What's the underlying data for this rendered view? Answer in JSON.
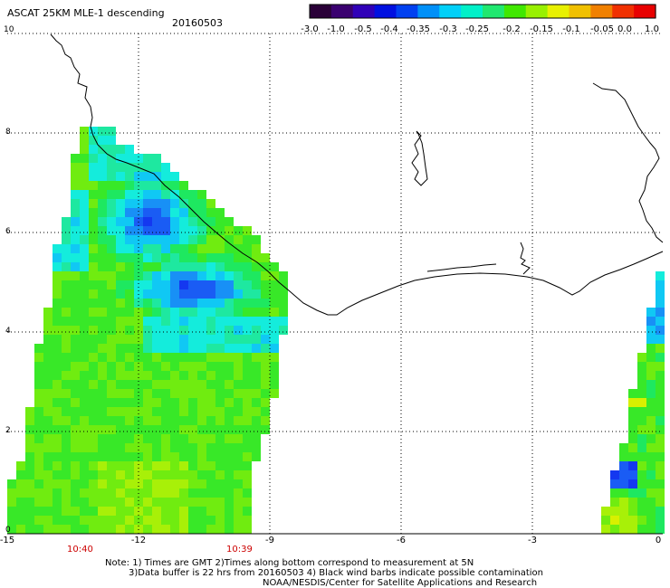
{
  "header": {
    "title": "ASCAT 25KM MLE-1 descending",
    "date": "20160503"
  },
  "colorbar": {
    "labels": [
      "-3.0",
      "-1.0",
      "-0.5",
      "-0.4",
      "-0.35",
      "-0.3",
      "-0.25",
      "-0.2",
      "-0.15",
      "-0.1",
      "-0.05",
      "0.0",
      "1.0"
    ],
    "colors": [
      "#2a0038",
      "#3a0070",
      "#3000b8",
      "#0010e0",
      "#0040f0",
      "#0090f8",
      "#00d0f8",
      "#00f0c8",
      "#20e870",
      "#40e800",
      "#98f000",
      "#e8f000",
      "#f0c000",
      "#f08000",
      "#f03000",
      "#e80000"
    ]
  },
  "axes": {
    "x_ticks": [
      "-15",
      "-12",
      "-9",
      "-6",
      "-3",
      "0"
    ],
    "y_ticks": [
      "0",
      "2",
      "4",
      "6",
      "8",
      "10"
    ]
  },
  "times": {
    "left": "10:40",
    "right": "10:39"
  },
  "footer": {
    "line1": "Note: 1) Times are GMT 2)Times along bottom correspond to measurement at 5N",
    "line2": "3)Data buffer is 22 hrs from 20160503 4) Black wind barbs indicate possible contamination",
    "line3": "NOAA/NESDIS/Center for Satellite Applications and Research"
  }
}
